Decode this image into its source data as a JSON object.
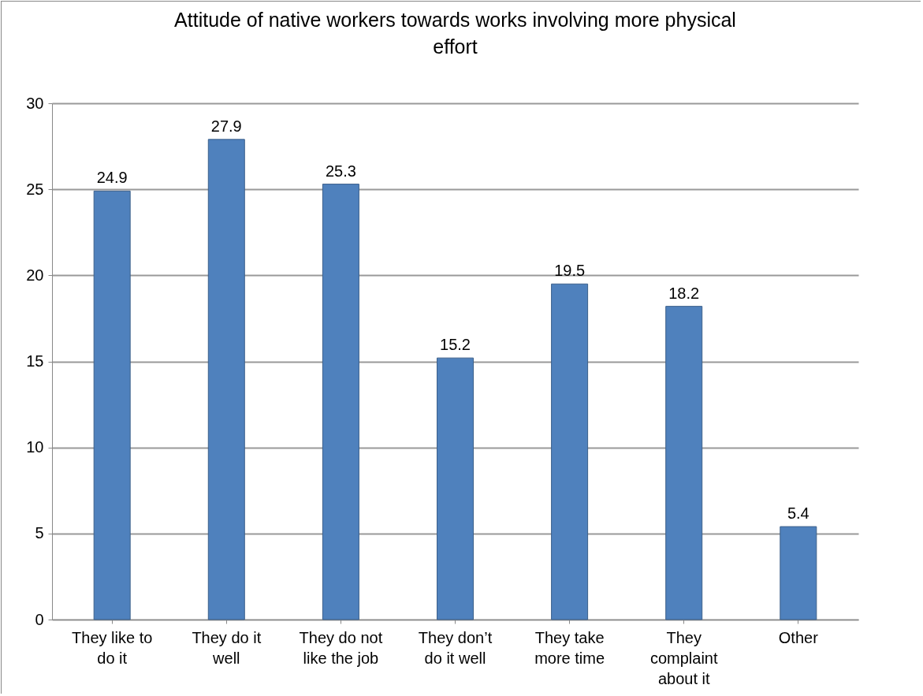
{
  "chart_data": {
    "type": "bar",
    "title": "Attitude of native workers towards works involving more physical effort",
    "categories": [
      "They like to do it",
      "They do it well",
      "They do not like the job",
      "They don’t do it well",
      "They take more time",
      "They complaint about it",
      "Other"
    ],
    "values": [
      24.9,
      27.9,
      25.3,
      15.2,
      19.5,
      18.2,
      5.4
    ],
    "color": "#4f81bd",
    "ylim": [
      0,
      30
    ],
    "yticks": [
      0,
      5,
      10,
      15,
      20,
      25,
      30
    ],
    "grid": "y",
    "data_labels": true
  }
}
